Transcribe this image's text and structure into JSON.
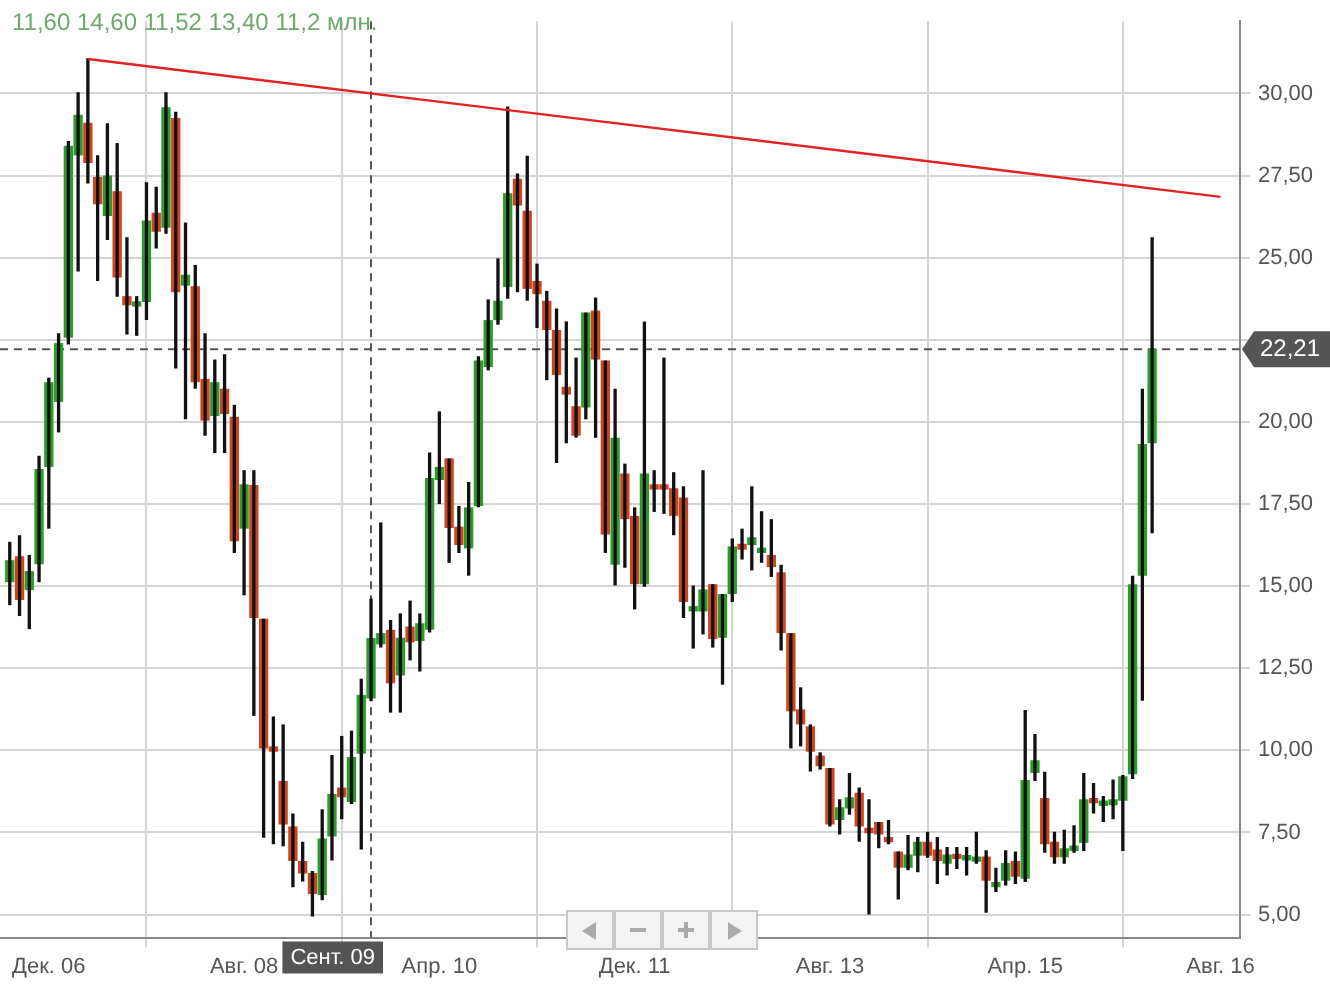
{
  "chart_data": {
    "type": "candlestick",
    "annotations": [
      "11,60 14,60 11,52 13,40 11,2 млн."
    ],
    "x": [
      "2006-08",
      "2006-09",
      "2006-10",
      "2006-11",
      "2006-12",
      "2007-01",
      "2007-02",
      "2007-03",
      "2007-04",
      "2007-05",
      "2007-06",
      "2007-07",
      "2007-08",
      "2007-09",
      "2007-10",
      "2007-11",
      "2007-12",
      "2008-01",
      "2008-02",
      "2008-03",
      "2008-04",
      "2008-05",
      "2008-06",
      "2008-07",
      "2008-08",
      "2008-09",
      "2008-10",
      "2008-11",
      "2008-12",
      "2009-01",
      "2009-02",
      "2009-03",
      "2009-04",
      "2009-05",
      "2009-06",
      "2009-07",
      "2009-08",
      "2009-09",
      "2009-10",
      "2009-11",
      "2009-12",
      "2010-01",
      "2010-02",
      "2010-03",
      "2010-04",
      "2010-05",
      "2010-06",
      "2010-07",
      "2010-08",
      "2010-09",
      "2010-10",
      "2010-11",
      "2010-12",
      "2011-01",
      "2011-02",
      "2011-03",
      "2011-04",
      "2011-05",
      "2011-06",
      "2011-07",
      "2011-08",
      "2011-09",
      "2011-10",
      "2011-11",
      "2011-12",
      "2012-01",
      "2012-02",
      "2012-03",
      "2012-04",
      "2012-05",
      "2012-06",
      "2012-07",
      "2012-08",
      "2012-09",
      "2012-10",
      "2012-11",
      "2012-12",
      "2013-01",
      "2013-02",
      "2013-03",
      "2013-04",
      "2013-05",
      "2013-06",
      "2013-07",
      "2013-08",
      "2013-09",
      "2013-10",
      "2013-11",
      "2013-12",
      "2014-01",
      "2014-02",
      "2014-03",
      "2014-04",
      "2014-05",
      "2014-06",
      "2014-07",
      "2014-08",
      "2014-09",
      "2014-10",
      "2014-11",
      "2014-12",
      "2015-01",
      "2015-02",
      "2015-03",
      "2015-04",
      "2015-05",
      "2015-06",
      "2015-07",
      "2015-08",
      "2015-09",
      "2015-10",
      "2015-11",
      "2015-12",
      "2016-01",
      "2016-02",
      "2016-03",
      "2016-04",
      "2016-05"
    ],
    "series": [
      {
        "ohlc": [
          [
            15.14,
            16.33,
            14.44,
            15.77
          ],
          [
            15.89,
            16.53,
            14.11,
            14.6
          ],
          [
            14.9,
            15.93,
            13.71,
            15.44
          ],
          [
            15.69,
            18.95,
            15.14,
            18.55
          ],
          [
            18.65,
            21.33,
            16.77,
            21.19
          ],
          [
            20.63,
            22.68,
            19.7,
            22.38
          ],
          [
            22.58,
            28.53,
            22.38,
            28.39
          ],
          [
            28.13,
            30.02,
            24.6,
            29.33
          ],
          [
            29.09,
            31.05,
            27.28,
            27.9
          ],
          [
            27.44,
            28.1,
            24.31,
            26.65
          ],
          [
            26.29,
            29.07,
            25.56,
            27.48
          ],
          [
            27.0,
            28.47,
            23.83,
            24.42
          ],
          [
            23.81,
            25.6,
            22.68,
            23.57
          ],
          [
            23.53,
            23.81,
            22.64,
            23.65
          ],
          [
            23.67,
            27.28,
            23.12,
            26.11
          ],
          [
            26.35,
            27.14,
            25.3,
            25.81
          ],
          [
            25.93,
            30.02,
            25.75,
            29.56
          ],
          [
            29.23,
            29.42,
            21.65,
            23.97
          ],
          [
            24.17,
            26.05,
            20.1,
            24.46
          ],
          [
            24.11,
            24.76,
            21.03,
            21.23
          ],
          [
            21.29,
            22.68,
            19.6,
            20.06
          ],
          [
            20.2,
            21.88,
            19.07,
            21.19
          ],
          [
            20.99,
            22.04,
            19.07,
            20.26
          ],
          [
            20.14,
            20.5,
            16.03,
            16.39
          ],
          [
            16.77,
            18.51,
            14.74,
            18.08
          ],
          [
            18.06,
            18.51,
            11.07,
            14.05
          ],
          [
            13.99,
            13.99,
            7.36,
            10.08
          ],
          [
            10.08,
            11.01,
            7.16,
            9.98
          ],
          [
            9.05,
            10.77,
            7.1,
            7.76
          ],
          [
            7.66,
            8.06,
            5.85,
            6.65
          ],
          [
            6.61,
            7.2,
            6.03,
            6.27
          ],
          [
            6.25,
            6.31,
            4.96,
            5.65
          ],
          [
            5.62,
            8.19,
            5.46,
            7.3
          ],
          [
            7.4,
            9.84,
            6.67,
            8.65
          ],
          [
            8.85,
            10.42,
            7.92,
            8.59
          ],
          [
            8.45,
            10.58,
            8.39,
            9.78
          ],
          [
            9.92,
            12.16,
            7.0,
            11.67
          ],
          [
            11.6,
            14.6,
            11.52,
            13.4
          ],
          [
            13.25,
            16.92,
            13.15,
            13.55
          ],
          [
            13.65,
            13.95,
            11.17,
            12.06
          ],
          [
            12.3,
            14.15,
            11.17,
            13.41
          ],
          [
            13.75,
            14.54,
            12.76,
            13.31
          ],
          [
            13.35,
            14.15,
            12.42,
            13.85
          ],
          [
            13.69,
            19.05,
            13.61,
            18.27
          ],
          [
            18.25,
            20.3,
            17.52,
            18.61
          ],
          [
            18.87,
            18.87,
            15.73,
            16.79
          ],
          [
            16.79,
            17.42,
            16.03,
            16.27
          ],
          [
            16.17,
            18.15,
            15.34,
            17.38
          ],
          [
            17.46,
            21.98,
            17.42,
            21.85
          ],
          [
            21.69,
            23.71,
            21.59,
            23.08
          ],
          [
            23.12,
            24.96,
            22.98,
            23.67
          ],
          [
            24.13,
            29.58,
            23.77,
            26.94
          ],
          [
            27.38,
            27.54,
            23.97,
            26.61
          ],
          [
            26.41,
            28.08,
            23.71,
            24.07
          ],
          [
            24.27,
            24.8,
            22.88,
            23.91
          ],
          [
            23.67,
            23.97,
            21.29,
            22.82
          ],
          [
            22.78,
            23.43,
            18.77,
            21.45
          ],
          [
            21.05,
            23.04,
            19.37,
            20.85
          ],
          [
            20.46,
            21.94,
            19.54,
            19.6
          ],
          [
            20.46,
            23.31,
            20.1,
            23.31
          ],
          [
            23.37,
            23.77,
            19.54,
            21.92
          ],
          [
            21.85,
            21.85,
            16.03,
            16.59
          ],
          [
            15.67,
            20.99,
            15.04,
            19.5
          ],
          [
            18.41,
            18.71,
            15.58,
            17.06
          ],
          [
            17.12,
            17.38,
            14.31,
            15.08
          ],
          [
            15.08,
            23.04,
            15.0,
            18.41
          ],
          [
            18.08,
            18.51,
            17.28,
            17.96
          ],
          [
            18.08,
            21.94,
            17.22,
            17.96
          ],
          [
            17.96,
            18.45,
            16.57,
            17.16
          ],
          [
            17.68,
            18.02,
            14.05,
            14.54
          ],
          [
            14.25,
            15.0,
            13.12,
            14.35
          ],
          [
            14.25,
            18.51,
            13.55,
            14.88
          ],
          [
            15.04,
            15.04,
            13.15,
            13.41
          ],
          [
            13.45,
            14.74,
            12.02,
            14.74
          ],
          [
            14.78,
            16.43,
            14.54,
            16.19
          ],
          [
            16.27,
            16.73,
            15.83,
            16.13
          ],
          [
            16.27,
            18.02,
            15.5,
            16.47
          ],
          [
            16.03,
            17.26,
            15.73,
            16.13
          ],
          [
            15.93,
            17.02,
            15.3,
            15.6
          ],
          [
            15.4,
            15.63,
            13.06,
            13.59
          ],
          [
            13.55,
            13.55,
            10.08,
            11.21
          ],
          [
            11.23,
            11.9,
            10.14,
            10.81
          ],
          [
            10.71,
            10.77,
            9.38,
            9.98
          ],
          [
            9.82,
            9.92,
            9.44,
            9.54
          ],
          [
            9.44,
            9.44,
            7.7,
            7.76
          ],
          [
            7.9,
            8.49,
            7.46,
            8.25
          ],
          [
            8.25,
            9.29,
            8.06,
            8.55
          ],
          [
            8.69,
            8.85,
            7.24,
            7.7
          ],
          [
            7.6,
            8.49,
            5.02,
            7.5
          ],
          [
            7.8,
            7.8,
            7.04,
            7.46
          ],
          [
            7.32,
            7.86,
            7.16,
            7.22
          ],
          [
            6.9,
            6.9,
            5.48,
            6.45
          ],
          [
            6.45,
            7.4,
            6.37,
            6.81
          ],
          [
            6.81,
            7.34,
            6.31,
            7.2
          ],
          [
            7.2,
            7.5,
            6.75,
            6.81
          ],
          [
            6.96,
            7.34,
            5.95,
            6.65
          ],
          [
            6.57,
            7.04,
            6.21,
            6.81
          ],
          [
            6.81,
            7.04,
            6.41,
            6.71
          ],
          [
            6.67,
            7.04,
            6.21,
            6.77
          ],
          [
            6.63,
            7.5,
            6.57,
            6.75
          ],
          [
            6.75,
            6.94,
            5.08,
            6.05
          ],
          [
            5.85,
            6.41,
            5.71,
            5.97
          ],
          [
            6.05,
            6.94,
            5.91,
            6.55
          ],
          [
            6.61,
            6.9,
            5.95,
            6.17
          ],
          [
            6.11,
            11.21,
            6.01,
            9.08
          ],
          [
            9.33,
            10.48,
            9.09,
            9.68
          ],
          [
            8.53,
            9.33,
            6.9,
            7.16
          ],
          [
            7.2,
            7.5,
            6.57,
            6.77
          ],
          [
            6.77,
            7.56,
            6.57,
            7.0
          ],
          [
            6.96,
            7.7,
            6.9,
            7.06
          ],
          [
            7.2,
            9.29,
            6.96,
            8.49
          ],
          [
            8.51,
            8.99,
            8.1,
            8.41
          ],
          [
            8.33,
            8.59,
            7.84,
            8.43
          ],
          [
            8.35,
            9.09,
            7.92,
            8.49
          ],
          [
            8.49,
            9.23,
            6.96,
            9.19
          ],
          [
            9.29,
            15.3,
            9.15,
            15.04
          ],
          [
            15.34,
            20.99,
            11.53,
            19.31
          ],
          [
            19.37,
            25.6,
            16.63,
            22.21
          ]
        ],
        "colors": [
          "#2e9a2e",
          "#cc4422",
          "#2e9a2e",
          "#2e9a2e",
          "#2e9a2e",
          "#2e9a2e",
          "#2e9a2e",
          "#2e9a2e",
          "#cc4422",
          "#cc4422",
          "#2e9a2e",
          "#cc4422",
          "#cc4422",
          "#2e9a2e",
          "#2e9a2e",
          "#cc4422",
          "#2e9a2e",
          "#cc4422",
          "#2e9a2e",
          "#cc4422",
          "#cc4422",
          "#2e9a2e",
          "#cc4422",
          "#cc4422",
          "#2e9a2e",
          "#cc4422",
          "#cc4422",
          "#cc4422",
          "#cc4422",
          "#cc4422",
          "#cc4422",
          "#cc4422",
          "#2e9a2e",
          "#2e9a2e",
          "#cc4422",
          "#2e9a2e",
          "#2e9a2e",
          "#2e9a2e",
          "#2e9a2e",
          "#cc4422",
          "#2e9a2e",
          "#cc4422",
          "#2e9a2e",
          "#2e9a2e",
          "#2e9a2e",
          "#cc4422",
          "#cc4422",
          "#2e9a2e",
          "#2e9a2e",
          "#2e9a2e",
          "#2e9a2e",
          "#2e9a2e",
          "#cc4422",
          "#cc4422",
          "#cc4422",
          "#cc4422",
          "#cc4422",
          "#cc4422",
          "#cc4422",
          "#2e9a2e",
          "#cc4422",
          "#cc4422",
          "#2e9a2e",
          "#cc4422",
          "#cc4422",
          "#2e9a2e",
          "#cc4422",
          "#cc4422",
          "#cc4422",
          "#cc4422",
          "#2e9a2e",
          "#2e9a2e",
          "#cc4422",
          "#2e9a2e",
          "#2e9a2e",
          "#cc4422",
          "#2e9a2e",
          "#2e9a2e",
          "#cc4422",
          "#cc4422",
          "#cc4422",
          "#cc4422",
          "#cc4422",
          "#cc4422",
          "#cc4422",
          "#2e9a2e",
          "#2e9a2e",
          "#cc4422",
          "#cc4422",
          "#cc4422",
          "#cc4422",
          "#cc4422",
          "#2e9a2e",
          "#2e9a2e",
          "#cc4422",
          "#cc4422",
          "#2e9a2e",
          "#cc4422",
          "#2e9a2e",
          "#2e9a2e",
          "#cc4422",
          "#2e9a2e",
          "#2e9a2e",
          "#cc4422",
          "#2e9a2e",
          "#2e9a2e",
          "#cc4422",
          "#cc4422",
          "#2e9a2e",
          "#2e9a2e",
          "#2e9a2e",
          "#cc4422",
          "#2e9a2e",
          "#2e9a2e",
          "#2e9a2e",
          "#2e9a2e",
          "#2e9a2e",
          "#2e9a2e"
        ]
      },
      {
        "type": "line",
        "x": [
          "2007-04",
          "2016-12"
        ],
        "values": [
          31.05,
          26.85
        ],
        "color": "#e02424"
      }
    ],
    "xlim": [
      "2006-07",
      "2017-02"
    ],
    "xticks": [
      {
        "value": "2006-12",
        "label": "Дек. 06"
      },
      {
        "value": "2008-08",
        "label": "Авг. 08"
      },
      {
        "value": "2010-04",
        "label": "Апр. 10"
      },
      {
        "value": "2011-12",
        "label": "Дек. 11"
      },
      {
        "value": "2013-08",
        "label": "Авг. 13"
      },
      {
        "value": "2015-04",
        "label": "Апр. 15"
      },
      {
        "value": "2016-12",
        "label": "Авг. 16"
      }
    ],
    "ylim": [
      4.3,
      32.2
    ],
    "yticks": [
      {
        "value": 5,
        "label": "5,00"
      },
      {
        "value": 7.5,
        "label": "7,50"
      },
      {
        "value": 10,
        "label": "10,00"
      },
      {
        "value": 12.5,
        "label": "12,50"
      },
      {
        "value": 15,
        "label": "15,00"
      },
      {
        "value": 17.5,
        "label": "17,50"
      },
      {
        "value": 20,
        "label": "20,00"
      },
      {
        "value": 22.5,
        "label": null
      },
      {
        "value": 25,
        "label": "25,00"
      },
      {
        "value": 27.5,
        "label": "27,50"
      },
      {
        "value": 30,
        "label": "30,00"
      }
    ],
    "ref_lines": [
      {
        "axis": "y",
        "value": 22.21,
        "label": "22,21",
        "color": "#555555",
        "line_style": "dashed"
      },
      {
        "axis": "x",
        "value": "2009-09",
        "label": "Сент. 09",
        "color": "#555555",
        "line_style": "dashed"
      }
    ],
    "grid": true,
    "legend": false,
    "marker": "none"
  }
}
